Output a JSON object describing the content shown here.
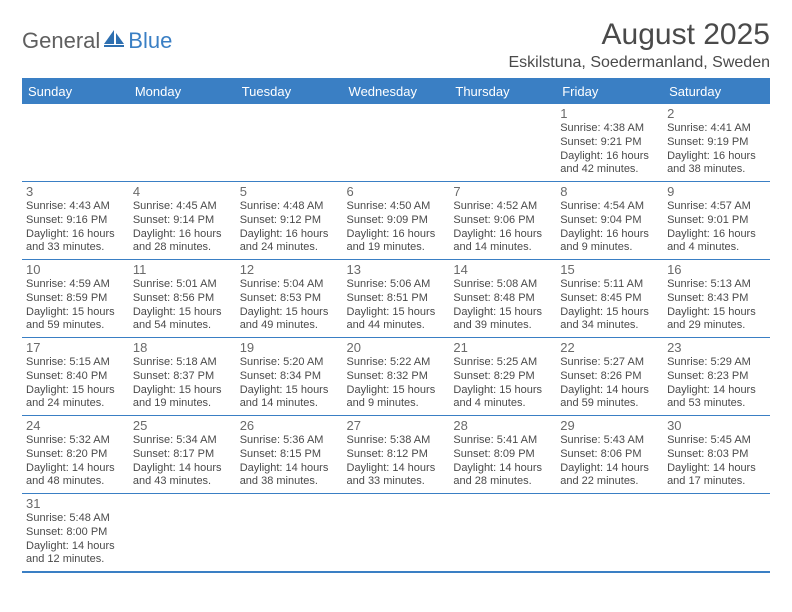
{
  "logo": {
    "general": "General",
    "blue": "Blue"
  },
  "title": "August 2025",
  "location": "Eskilstuna, Soedermanland, Sweden",
  "colors": {
    "accent": "#3a7fc4",
    "text": "#4a4a4a",
    "bg": "#ffffff"
  },
  "weekdays": [
    "Sunday",
    "Monday",
    "Tuesday",
    "Wednesday",
    "Thursday",
    "Friday",
    "Saturday"
  ],
  "weeks": [
    [
      null,
      null,
      null,
      null,
      null,
      {
        "n": "1",
        "sr": "4:38 AM",
        "ss": "9:21 PM",
        "dl": "16 hours and 42 minutes."
      },
      {
        "n": "2",
        "sr": "4:41 AM",
        "ss": "9:19 PM",
        "dl": "16 hours and 38 minutes."
      }
    ],
    [
      {
        "n": "3",
        "sr": "4:43 AM",
        "ss": "9:16 PM",
        "dl": "16 hours and 33 minutes."
      },
      {
        "n": "4",
        "sr": "4:45 AM",
        "ss": "9:14 PM",
        "dl": "16 hours and 28 minutes."
      },
      {
        "n": "5",
        "sr": "4:48 AM",
        "ss": "9:12 PM",
        "dl": "16 hours and 24 minutes."
      },
      {
        "n": "6",
        "sr": "4:50 AM",
        "ss": "9:09 PM",
        "dl": "16 hours and 19 minutes."
      },
      {
        "n": "7",
        "sr": "4:52 AM",
        "ss": "9:06 PM",
        "dl": "16 hours and 14 minutes."
      },
      {
        "n": "8",
        "sr": "4:54 AM",
        "ss": "9:04 PM",
        "dl": "16 hours and 9 minutes."
      },
      {
        "n": "9",
        "sr": "4:57 AM",
        "ss": "9:01 PM",
        "dl": "16 hours and 4 minutes."
      }
    ],
    [
      {
        "n": "10",
        "sr": "4:59 AM",
        "ss": "8:59 PM",
        "dl": "15 hours and 59 minutes."
      },
      {
        "n": "11",
        "sr": "5:01 AM",
        "ss": "8:56 PM",
        "dl": "15 hours and 54 minutes."
      },
      {
        "n": "12",
        "sr": "5:04 AM",
        "ss": "8:53 PM",
        "dl": "15 hours and 49 minutes."
      },
      {
        "n": "13",
        "sr": "5:06 AM",
        "ss": "8:51 PM",
        "dl": "15 hours and 44 minutes."
      },
      {
        "n": "14",
        "sr": "5:08 AM",
        "ss": "8:48 PM",
        "dl": "15 hours and 39 minutes."
      },
      {
        "n": "15",
        "sr": "5:11 AM",
        "ss": "8:45 PM",
        "dl": "15 hours and 34 minutes."
      },
      {
        "n": "16",
        "sr": "5:13 AM",
        "ss": "8:43 PM",
        "dl": "15 hours and 29 minutes."
      }
    ],
    [
      {
        "n": "17",
        "sr": "5:15 AM",
        "ss": "8:40 PM",
        "dl": "15 hours and 24 minutes."
      },
      {
        "n": "18",
        "sr": "5:18 AM",
        "ss": "8:37 PM",
        "dl": "15 hours and 19 minutes."
      },
      {
        "n": "19",
        "sr": "5:20 AM",
        "ss": "8:34 PM",
        "dl": "15 hours and 14 minutes."
      },
      {
        "n": "20",
        "sr": "5:22 AM",
        "ss": "8:32 PM",
        "dl": "15 hours and 9 minutes."
      },
      {
        "n": "21",
        "sr": "5:25 AM",
        "ss": "8:29 PM",
        "dl": "15 hours and 4 minutes."
      },
      {
        "n": "22",
        "sr": "5:27 AM",
        "ss": "8:26 PM",
        "dl": "14 hours and 59 minutes."
      },
      {
        "n": "23",
        "sr": "5:29 AM",
        "ss": "8:23 PM",
        "dl": "14 hours and 53 minutes."
      }
    ],
    [
      {
        "n": "24",
        "sr": "5:32 AM",
        "ss": "8:20 PM",
        "dl": "14 hours and 48 minutes."
      },
      {
        "n": "25",
        "sr": "5:34 AM",
        "ss": "8:17 PM",
        "dl": "14 hours and 43 minutes."
      },
      {
        "n": "26",
        "sr": "5:36 AM",
        "ss": "8:15 PM",
        "dl": "14 hours and 38 minutes."
      },
      {
        "n": "27",
        "sr": "5:38 AM",
        "ss": "8:12 PM",
        "dl": "14 hours and 33 minutes."
      },
      {
        "n": "28",
        "sr": "5:41 AM",
        "ss": "8:09 PM",
        "dl": "14 hours and 28 minutes."
      },
      {
        "n": "29",
        "sr": "5:43 AM",
        "ss": "8:06 PM",
        "dl": "14 hours and 22 minutes."
      },
      {
        "n": "30",
        "sr": "5:45 AM",
        "ss": "8:03 PM",
        "dl": "14 hours and 17 minutes."
      }
    ],
    [
      {
        "n": "31",
        "sr": "5:48 AM",
        "ss": "8:00 PM",
        "dl": "14 hours and 12 minutes."
      },
      null,
      null,
      null,
      null,
      null,
      null
    ]
  ],
  "labels": {
    "sunrise": "Sunrise: ",
    "sunset": "Sunset: ",
    "daylight": "Daylight: "
  }
}
